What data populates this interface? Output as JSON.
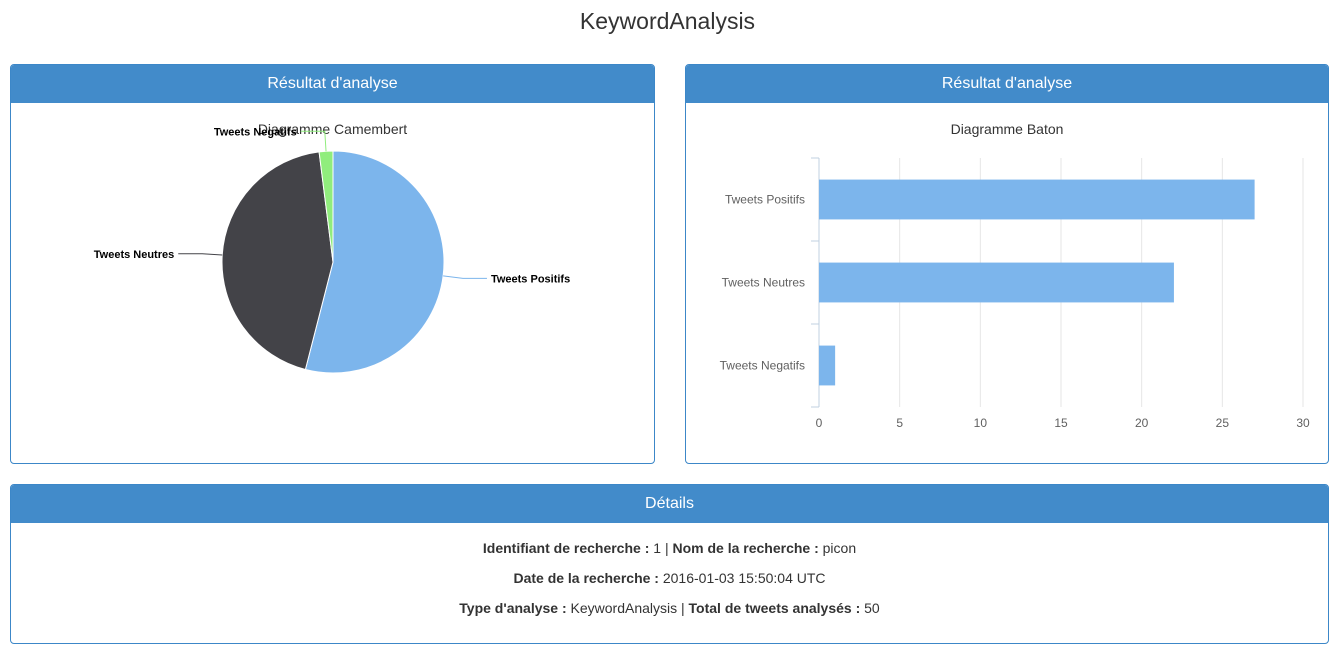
{
  "page": {
    "title": "KeywordAnalysis"
  },
  "pie_panel": {
    "heading": "Résultat d'analyse"
  },
  "bar_panel": {
    "heading": "Résultat d'analyse"
  },
  "chart_data": [
    {
      "type": "pie",
      "title": "Diagramme Camembert",
      "categories": [
        "Tweets Positifs",
        "Tweets Neutres",
        "Tweets Negatifs"
      ],
      "values": [
        27,
        22,
        1
      ],
      "colors": [
        "#7cb5ec",
        "#434348",
        "#90ed7d"
      ]
    },
    {
      "type": "bar",
      "orientation": "horizontal",
      "title": "Diagramme Baton",
      "categories": [
        "Tweets Positifs",
        "Tweets Neutres",
        "Tweets Negatifs"
      ],
      "values": [
        27,
        22,
        1
      ],
      "xlim": [
        0,
        30
      ],
      "ticks": [
        "0",
        "5",
        "10",
        "15",
        "20",
        "25",
        "30"
      ],
      "grid": true,
      "color": "#7cb5ec"
    }
  ],
  "details": {
    "heading": "Détails",
    "id_label": "Identifiant de recherche :",
    "id_value": "1",
    "sep1": "|",
    "name_label": "Nom de la recherche :",
    "name_value": "picon",
    "date_label": "Date de la recherche :",
    "date_value": "2016-01-03 15:50:04 UTC",
    "type_label": "Type d'analyse :",
    "type_value": "KeywordAnalysis",
    "sep2": "|",
    "total_label": "Total de tweets analysés :",
    "total_value": "50"
  }
}
